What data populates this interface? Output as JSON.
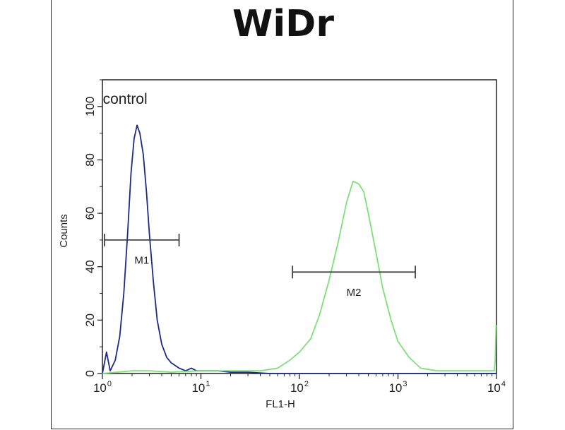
{
  "chart_data": {
    "type": "line",
    "title": "WiDr",
    "xlabel": "FL1-H",
    "ylabel": "Counts",
    "x_scale": "log",
    "xlim": [
      1,
      10000
    ],
    "ylim": [
      0,
      110
    ],
    "grid": false,
    "x_ticks": [
      {
        "value": 1,
        "base": "10",
        "exp": "0"
      },
      {
        "value": 10,
        "base": "10",
        "exp": "1"
      },
      {
        "value": 100,
        "base": "10",
        "exp": "2"
      },
      {
        "value": 1000,
        "base": "10",
        "exp": "3"
      },
      {
        "value": 10000,
        "base": "10",
        "exp": "4"
      }
    ],
    "y_ticks": [
      0,
      20,
      40,
      60,
      80,
      100
    ],
    "annotations": [
      {
        "text": "control",
        "x": 1.7,
        "y": 101
      }
    ],
    "markers": [
      {
        "label": "M1",
        "x_start": 1.05,
        "x_end": 6.0,
        "y": 50,
        "label_y": 40
      },
      {
        "label": "M2",
        "x_start": 85,
        "x_end": 1500,
        "y": 38,
        "label_y": 28
      }
    ],
    "series": [
      {
        "color": "#1a2a8a",
        "points": [
          [
            1.0,
            0
          ],
          [
            1.1,
            8
          ],
          [
            1.2,
            1
          ],
          [
            1.35,
            5
          ],
          [
            1.5,
            14
          ],
          [
            1.65,
            30
          ],
          [
            1.8,
            52
          ],
          [
            1.95,
            75
          ],
          [
            2.1,
            88
          ],
          [
            2.25,
            93
          ],
          [
            2.4,
            90
          ],
          [
            2.6,
            82
          ],
          [
            2.8,
            68
          ],
          [
            3.0,
            52
          ],
          [
            3.3,
            34
          ],
          [
            3.6,
            20
          ],
          [
            4.0,
            11
          ],
          [
            4.5,
            6
          ],
          [
            5.0,
            4
          ],
          [
            6.0,
            2
          ],
          [
            7.0,
            1
          ],
          [
            8.0,
            2
          ],
          [
            9.0,
            1
          ],
          [
            10,
            1
          ],
          [
            12,
            1
          ],
          [
            15,
            1
          ],
          [
            20,
            0.5
          ],
          [
            30,
            0.5
          ],
          [
            50,
            0
          ],
          [
            100,
            0
          ],
          [
            10000,
            0
          ]
        ]
      },
      {
        "color": "#7fe07a",
        "points": [
          [
            1.0,
            0
          ],
          [
            2,
            1
          ],
          [
            3,
            1
          ],
          [
            5,
            0.5
          ],
          [
            10,
            1
          ],
          [
            20,
            1
          ],
          [
            40,
            1
          ],
          [
            60,
            2
          ],
          [
            80,
            5
          ],
          [
            100,
            8
          ],
          [
            130,
            13
          ],
          [
            160,
            22
          ],
          [
            200,
            35
          ],
          [
            250,
            50
          ],
          [
            300,
            64
          ],
          [
            350,
            72
          ],
          [
            400,
            71
          ],
          [
            450,
            68
          ],
          [
            500,
            60
          ],
          [
            600,
            45
          ],
          [
            700,
            32
          ],
          [
            850,
            20
          ],
          [
            1000,
            12
          ],
          [
            1300,
            6
          ],
          [
            1700,
            2
          ],
          [
            2500,
            1
          ],
          [
            4000,
            1
          ],
          [
            7000,
            1
          ],
          [
            9500,
            1
          ],
          [
            9700,
            5
          ],
          [
            9900,
            18
          ],
          [
            10000,
            18
          ]
        ]
      }
    ]
  }
}
